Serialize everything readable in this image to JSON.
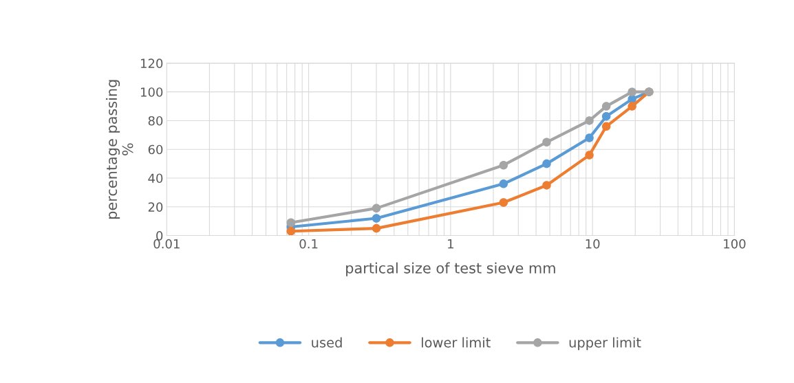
{
  "chart_data": {
    "type": "line",
    "xlabel": "partical size of test sieve mm",
    "ylabel": "percentage passing\n%",
    "x": [
      0.075,
      0.3,
      2.36,
      4.75,
      9.5,
      12.5,
      19,
      25
    ],
    "series": [
      {
        "name": "used",
        "color": "#5b9bd5",
        "values": [
          6,
          12,
          36,
          50,
          68,
          83,
          95,
          100
        ]
      },
      {
        "name": "lower limit",
        "color": "#ed7d31",
        "values": [
          3,
          5,
          23,
          35,
          56,
          76,
          90,
          100
        ]
      },
      {
        "name": "upper limit",
        "color": "#a5a5a5",
        "values": [
          9,
          19,
          49,
          65,
          80,
          90,
          100,
          100
        ]
      }
    ],
    "log": "x",
    "xlim": [
      0.01,
      100
    ],
    "xticks": [
      0.01,
      0.1,
      1,
      10,
      100
    ],
    "ylim": [
      0,
      120
    ],
    "yticks": [
      0,
      20,
      40,
      60,
      80,
      100,
      120
    ],
    "grid": true,
    "legend": "bottom",
    "marker": "circle",
    "line_style": "solid"
  }
}
